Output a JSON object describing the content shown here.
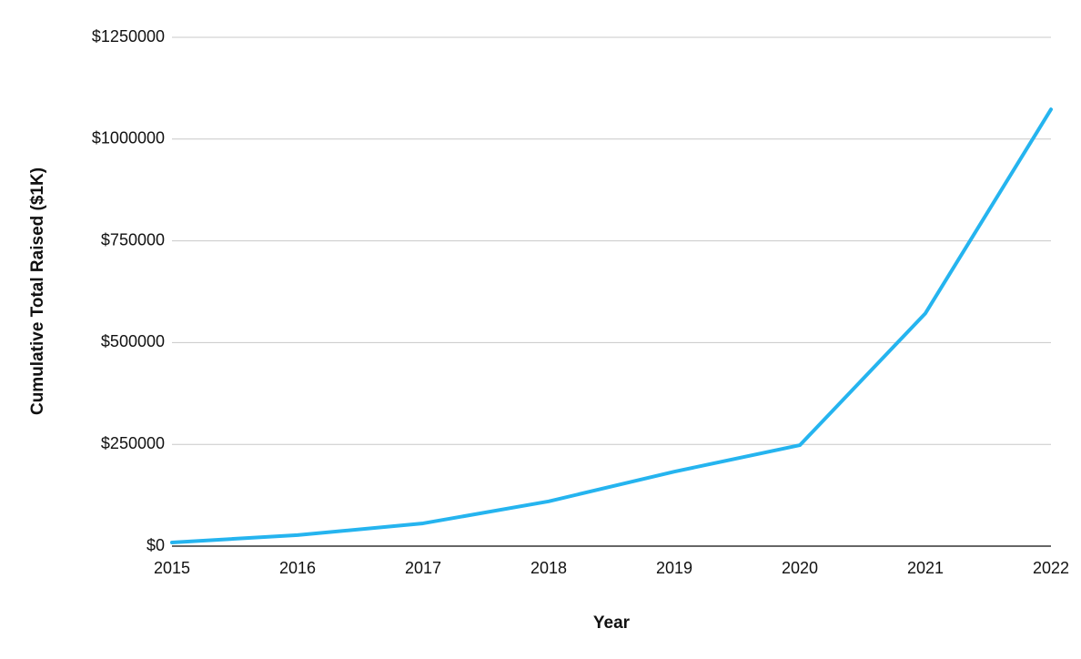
{
  "chart_data": {
    "type": "line",
    "x_label": "Year",
    "y_label": "Cumulative Total Raised ($1K)",
    "x": [
      2015,
      2016,
      2017,
      2018,
      2019,
      2020,
      2021,
      2022
    ],
    "values": [
      9000,
      27000,
      56000,
      110000,
      183000,
      248000,
      572000,
      1073000
    ],
    "color": "#25b4ef",
    "xlim": [
      2015,
      2022
    ],
    "xticks": [
      2015,
      2016,
      2017,
      2018,
      2019,
      2020,
      2021,
      2022
    ],
    "ylim": [
      0,
      1250000
    ],
    "yticks": [
      {
        "value": 0,
        "label": "$0"
      },
      {
        "value": 250000,
        "label": "$250000"
      },
      {
        "value": 500000,
        "label": "$500000"
      },
      {
        "value": 750000,
        "label": "$750000"
      },
      {
        "value": 1000000,
        "label": "$1000000"
      },
      {
        "value": 1250000,
        "label": "$1250000"
      }
    ],
    "grid": true
  }
}
